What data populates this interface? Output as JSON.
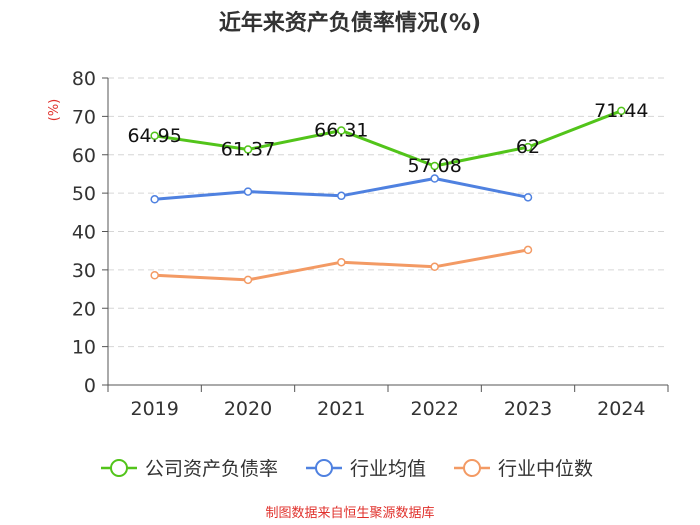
{
  "chart_data": {
    "type": "line",
    "title": "近年来资产负债率情况(%)",
    "ylabel": "(%)",
    "xlabel": "",
    "categories": [
      "2019",
      "2020",
      "2021",
      "2022",
      "2023",
      "2024"
    ],
    "ylim": [
      0,
      80
    ],
    "yticks": [
      0,
      10,
      20,
      30,
      40,
      50,
      60,
      70,
      80
    ],
    "grid": true,
    "legend_position": "bottom",
    "series": [
      {
        "name": "公司资产负债率",
        "color": "#52c41a",
        "values": [
          64.95,
          61.37,
          66.31,
          57.08,
          62,
          71.44
        ],
        "labels": [
          "64.95",
          "61.37",
          "66.31",
          "57.08",
          "62",
          "71.44"
        ],
        "show_labels": true
      },
      {
        "name": "行业均值",
        "color": "#4f81e0",
        "values": [
          48.4,
          50.4,
          49.3,
          53.8,
          48.9,
          null
        ],
        "show_labels": false
      },
      {
        "name": "行业中位数",
        "color": "#f39a64",
        "values": [
          28.6,
          27.4,
          32.0,
          30.8,
          35.2,
          null
        ],
        "show_labels": false
      }
    ],
    "source": "制图数据来自恒生聚源数据库"
  }
}
